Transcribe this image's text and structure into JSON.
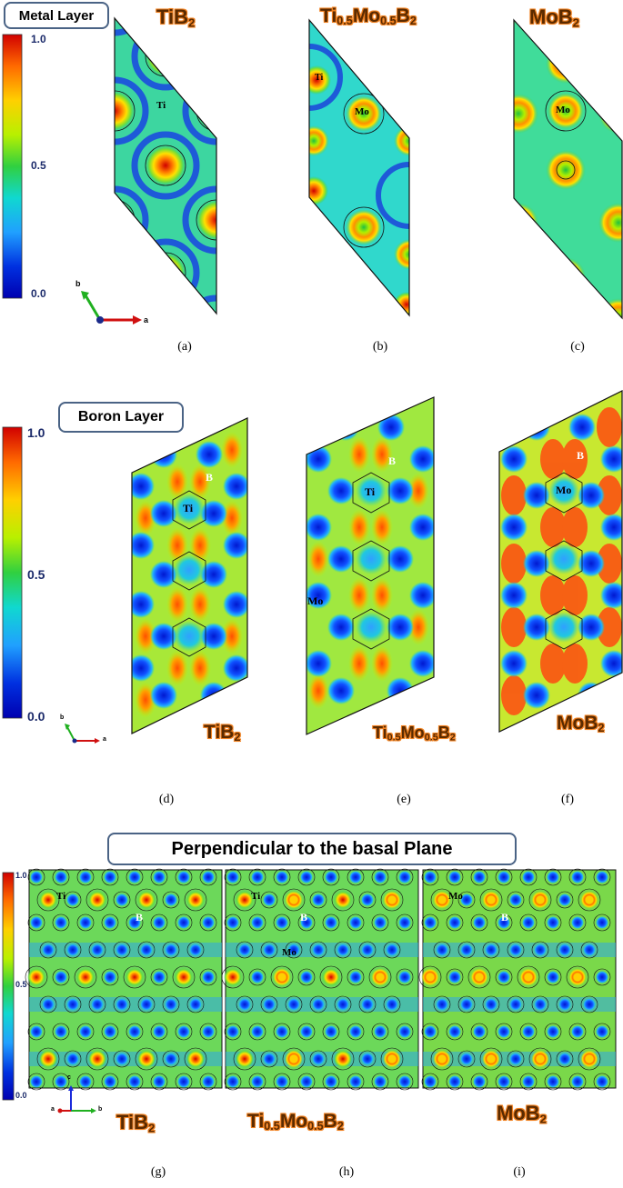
{
  "sections": {
    "metal": {
      "frame_label": "Metal Layer"
    },
    "boron": {
      "frame_label": "Boron Layer"
    },
    "perp": {
      "frame_label": "Perpendicular to the basal Plane"
    }
  },
  "colorbar": {
    "ticks": [
      "1.0",
      "0.5",
      "0.0"
    ],
    "colors": [
      "#d10000",
      "#ff6a00",
      "#ffd000",
      "#b8f000",
      "#30d040",
      "#10d8d0",
      "#20a0ff",
      "#0030e0",
      "#0000b0"
    ]
  },
  "compounds": {
    "tib2": {
      "base": "TiB",
      "sub": "2"
    },
    "timo": {
      "p1": "Ti",
      "s1": "0.5",
      "p2": "Mo",
      "s2": "0.5",
      "p3": "B",
      "s3": "2"
    },
    "mob2": {
      "base": "MoB",
      "sub": "2"
    }
  },
  "atom_labels": {
    "ti": "Ti",
    "mo": "Mo",
    "b": "B"
  },
  "axes": {
    "a": "a",
    "b": "b",
    "c": "c"
  },
  "captions": [
    "(a)",
    "(b)",
    "(c)",
    "(d)",
    "(e)",
    "(f)",
    "(g)",
    "(h)",
    "(i)"
  ]
}
